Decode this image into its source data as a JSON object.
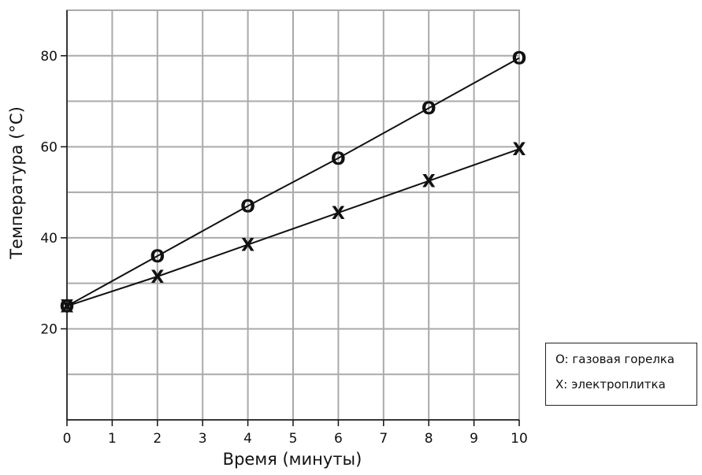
{
  "chart_data": {
    "type": "line",
    "x": [
      0,
      2,
      4,
      6,
      8,
      10
    ],
    "series": [
      {
        "marker": "O",
        "values": [
          25,
          36,
          47,
          57.5,
          68.5,
          79.5
        ]
      },
      {
        "marker": "X",
        "values": [
          25,
          31.5,
          38.5,
          45.5,
          52.5,
          59.5
        ]
      }
    ],
    "xlabel": "Время (минуты)",
    "ylabel": "Температура (°C)",
    "x_ticks": [
      "0",
      "1",
      "2",
      "3",
      "4",
      "5",
      "6",
      "7",
      "8",
      "9",
      "10"
    ],
    "y_ticks": [
      "20",
      "40",
      "60",
      "80"
    ],
    "xlim": [
      0,
      10
    ],
    "ylim": [
      0,
      90
    ],
    "grid": true,
    "legend_position": "bottom-right, outside plot",
    "colors": {
      "grid": "#aaaaaa",
      "line": "#111111"
    }
  },
  "legend": {
    "items": [
      {
        "label": "O: газовая горелка"
      },
      {
        "label": "X: электроплитка"
      }
    ]
  }
}
